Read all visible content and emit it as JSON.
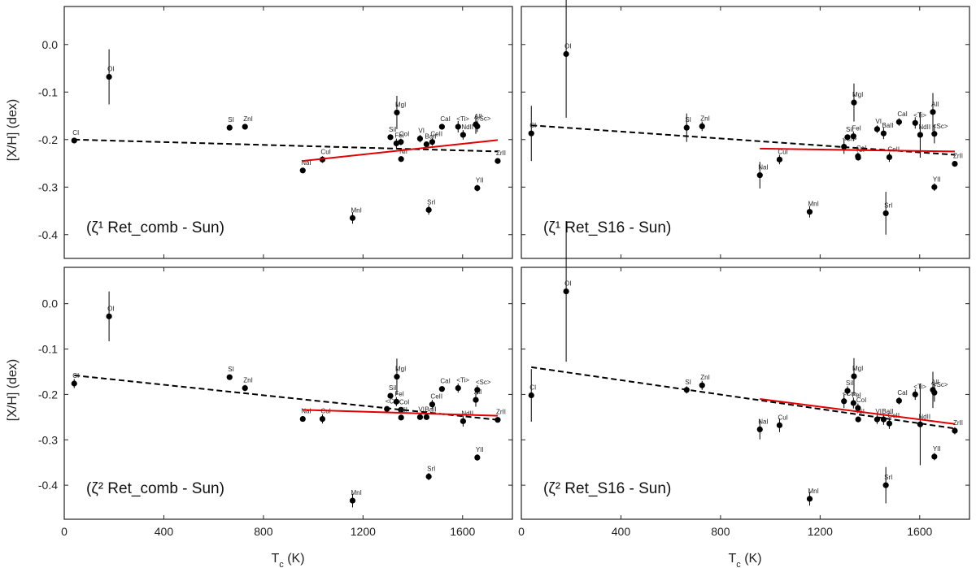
{
  "figure": {
    "ylabel_top": "[X/H] (dex)",
    "ylabel_bottom": "[X/H] (dex)",
    "xlabel_left": "T$_c$ (K)",
    "xlabel_right": "T$_c$ (K)"
  },
  "chart_data": [
    {
      "type": "scatter",
      "title": "(ζ¹ Ret_comb - Sun)",
      "xlabel": "Tc (K)",
      "ylabel": "[X/H] (dex)",
      "xlim": [
        0,
        1800
      ],
      "ylim": [
        -0.45,
        0.08
      ],
      "xticks": [
        "0",
        "400",
        "800",
        "1200",
        "1600"
      ],
      "yticks": [
        "0.0",
        "-0.1",
        "-0.2",
        "-0.3",
        "-0.4"
      ],
      "points": [
        {
          "label": "CI",
          "tc": 40,
          "value": -0.202,
          "err": 0.004
        },
        {
          "label": "OI",
          "tc": 180,
          "value": -0.068,
          "err": 0.058
        },
        {
          "label": "SI",
          "tc": 664,
          "value": -0.175,
          "err": 0.005
        },
        {
          "label": "ZnI",
          "tc": 726,
          "value": -0.173,
          "err": 0.006
        },
        {
          "label": "NaI",
          "tc": 958,
          "value": -0.265,
          "err": 0.004
        },
        {
          "label": "CuI",
          "tc": 1037,
          "value": -0.242,
          "err": 0.007
        },
        {
          "label": "MnI",
          "tc": 1158,
          "value": -0.365,
          "err": 0.012
        },
        {
          "label": "SiI",
          "tc": 1310,
          "value": -0.195,
          "err": 0.005
        },
        {
          "label": "MgI",
          "tc": 1336,
          "value": -0.143,
          "err": 0.035
        },
        {
          "label": "FeI",
          "tc": 1334,
          "value": -0.208,
          "err": 0.01
        },
        {
          "label": "CoI",
          "tc": 1352,
          "value": -0.205,
          "err": 0.007
        },
        {
          "label": "NiI",
          "tc": 1353,
          "value": -0.241,
          "err": 0.005
        },
        {
          "label": "VI",
          "tc": 1429,
          "value": -0.198,
          "err": 0.008
        },
        {
          "label": "SrI",
          "tc": 1464,
          "value": -0.348,
          "err": 0.01
        },
        {
          "label": "BaII",
          "tc": 1455,
          "value": -0.21,
          "err": 0.006
        },
        {
          "label": "CeII",
          "tc": 1478,
          "value": -0.205,
          "err": 0.008
        },
        {
          "label": "CaI",
          "tc": 1517,
          "value": -0.173,
          "err": 0.006
        },
        {
          "label": "<Ti>",
          "tc": 1582,
          "value": -0.173,
          "err": 0.012
        },
        {
          "label": "NdII",
          "tc": 1602,
          "value": -0.19,
          "err": 0.01
        },
        {
          "label": "AlI",
          "tc": 1653,
          "value": -0.168,
          "err": 0.02
        },
        {
          "label": "<Sc>",
          "tc": 1659,
          "value": -0.172,
          "err": 0.012
        },
        {
          "label": "YII",
          "tc": 1659,
          "value": -0.302,
          "err": 0.007
        },
        {
          "label": "ZrII",
          "tc": 1741,
          "value": -0.245,
          "err": 0.006
        }
      ],
      "fit_all": {
        "name": "dashed black fit (all elements)",
        "x": [
          40,
          1741
        ],
        "y": [
          -0.2,
          -0.225
        ]
      },
      "fit_refractory": {
        "name": "red fit (Tc > 900 K)",
        "x": [
          958,
          1741
        ],
        "y": [
          -0.245,
          -0.201
        ]
      }
    },
    {
      "type": "scatter",
      "title": "(ζ¹ Ret_S16 - Sun)",
      "xlabel": "Tc (K)",
      "ylabel": "[X/H] (dex)",
      "xlim": [
        0,
        1800
      ],
      "ylim": [
        -0.45,
        0.08
      ],
      "xticks": [
        "0",
        "400",
        "800",
        "1200",
        "1600"
      ],
      "yticks": [
        "0.0",
        "-0.1",
        "-0.2",
        "-0.3",
        "-0.4"
      ],
      "points": [
        {
          "label": "CI",
          "tc": 40,
          "value": -0.187,
          "err": 0.058
        },
        {
          "label": "OI",
          "tc": 180,
          "value": -0.02,
          "err": 0.134
        },
        {
          "label": "SI",
          "tc": 664,
          "value": -0.175,
          "err": 0.03
        },
        {
          "label": "ZnI",
          "tc": 726,
          "value": -0.172,
          "err": 0.01
        },
        {
          "label": "NaI",
          "tc": 958,
          "value": -0.275,
          "err": 0.028
        },
        {
          "label": "CuI",
          "tc": 1037,
          "value": -0.242,
          "err": 0.01
        },
        {
          "label": "MnI",
          "tc": 1158,
          "value": -0.352,
          "err": 0.012
        },
        {
          "label": "<Cr>",
          "tc": 1296,
          "value": -0.215,
          "err": 0.015
        },
        {
          "label": "SiI",
          "tc": 1310,
          "value": -0.195,
          "err": 0.006
        },
        {
          "label": "FeI",
          "tc": 1334,
          "value": -0.193,
          "err": 0.01
        },
        {
          "label": "MgI",
          "tc": 1336,
          "value": -0.122,
          "err": 0.04
        },
        {
          "label": "CoI",
          "tc": 1352,
          "value": -0.235,
          "err": 0.008
        },
        {
          "label": "NiI",
          "tc": 1353,
          "value": -0.238,
          "err": 0.006
        },
        {
          "label": "VI",
          "tc": 1429,
          "value": -0.178,
          "err": 0.008
        },
        {
          "label": "BaII",
          "tc": 1455,
          "value": -0.187,
          "err": 0.012
        },
        {
          "label": "SrI",
          "tc": 1464,
          "value": -0.355,
          "err": 0.045
        },
        {
          "label": "CeII",
          "tc": 1478,
          "value": -0.237,
          "err": 0.01
        },
        {
          "label": "CaI",
          "tc": 1517,
          "value": -0.163,
          "err": 0.008
        },
        {
          "label": "<Ti>",
          "tc": 1582,
          "value": -0.165,
          "err": 0.012
        },
        {
          "label": "NdII",
          "tc": 1602,
          "value": -0.19,
          "err": 0.048
        },
        {
          "label": "AlI",
          "tc": 1653,
          "value": -0.142,
          "err": 0.04
        },
        {
          "label": "<Sc>",
          "tc": 1659,
          "value": -0.188,
          "err": 0.02
        },
        {
          "label": "YII",
          "tc": 1659,
          "value": -0.3,
          "err": 0.008
        },
        {
          "label": "ZrII",
          "tc": 1741,
          "value": -0.251,
          "err": 0.005
        }
      ],
      "fit_all": {
        "name": "dashed black fit (all elements)",
        "x": [
          40,
          1741
        ],
        "y": [
          -0.17,
          -0.232
        ]
      },
      "fit_refractory": {
        "name": "red fit (Tc > 900 K)",
        "x": [
          958,
          1741
        ],
        "y": [
          -0.219,
          -0.225
        ]
      }
    },
    {
      "type": "scatter",
      "title": "(ζ² Ret_comb - Sun)",
      "xlabel": "Tc (K)",
      "ylabel": "[X/H] (dex)",
      "xlim": [
        0,
        1800
      ],
      "ylim": [
        -0.475,
        0.08
      ],
      "xticks": [
        "0",
        "400",
        "800",
        "1200",
        "1600"
      ],
      "yticks": [
        "0.0",
        "-0.1",
        "-0.2",
        "-0.3",
        "-0.4"
      ],
      "points": [
        {
          "label": "CI",
          "tc": 40,
          "value": -0.176,
          "err": 0.01
        },
        {
          "label": "OI",
          "tc": 180,
          "value": -0.028,
          "err": 0.055
        },
        {
          "label": "SI",
          "tc": 664,
          "value": -0.162,
          "err": 0.005
        },
        {
          "label": "ZnI",
          "tc": 726,
          "value": -0.186,
          "err": 0.007
        },
        {
          "label": "NaI",
          "tc": 958,
          "value": -0.254,
          "err": 0.006
        },
        {
          "label": "CuI",
          "tc": 1037,
          "value": -0.254,
          "err": 0.01
        },
        {
          "label": "MnI",
          "tc": 1158,
          "value": -0.434,
          "err": 0.015
        },
        {
          "label": "<Cr>",
          "tc": 1296,
          "value": -0.232,
          "err": 0.006
        },
        {
          "label": "SiI",
          "tc": 1310,
          "value": -0.203,
          "err": 0.006
        },
        {
          "label": "FeI",
          "tc": 1334,
          "value": -0.216,
          "err": 0.01
        },
        {
          "label": "MgI",
          "tc": 1336,
          "value": -0.161,
          "err": 0.04
        },
        {
          "label": "CoI",
          "tc": 1352,
          "value": -0.234,
          "err": 0.006
        },
        {
          "label": "NiI",
          "tc": 1353,
          "value": -0.251,
          "err": 0.005
        },
        {
          "label": "VI",
          "tc": 1429,
          "value": -0.25,
          "err": 0.006
        },
        {
          "label": "BaII",
          "tc": 1455,
          "value": -0.25,
          "err": 0.006
        },
        {
          "label": "SrI",
          "tc": 1464,
          "value": -0.381,
          "err": 0.008
        },
        {
          "label": "CeII",
          "tc": 1478,
          "value": -0.222,
          "err": 0.01
        },
        {
          "label": "CaI",
          "tc": 1517,
          "value": -0.188,
          "err": 0.006
        },
        {
          "label": "<Ti>",
          "tc": 1582,
          "value": -0.186,
          "err": 0.01
        },
        {
          "label": "NdII",
          "tc": 1602,
          "value": -0.259,
          "err": 0.012
        },
        {
          "label": "AlI",
          "tc": 1653,
          "value": -0.212,
          "err": 0.015
        },
        {
          "label": "<Sc>",
          "tc": 1659,
          "value": -0.19,
          "err": 0.01
        },
        {
          "label": "YII",
          "tc": 1659,
          "value": -0.339,
          "err": 0.007
        },
        {
          "label": "ZrII",
          "tc": 1741,
          "value": -0.256,
          "err": 0.006
        }
      ],
      "fit_all": {
        "name": "dashed black fit (all elements)",
        "x": [
          40,
          1741
        ],
        "y": [
          -0.158,
          -0.256
        ]
      },
      "fit_refractory": {
        "name": "red fit (Tc > 900 K)",
        "x": [
          958,
          1741
        ],
        "y": [
          -0.234,
          -0.247
        ]
      }
    },
    {
      "type": "scatter",
      "title": "(ζ² Ret_S16 - Sun)",
      "xlabel": "Tc (K)",
      "ylabel": "[X/H] (dex)",
      "xlim": [
        0,
        1800
      ],
      "ylim": [
        -0.475,
        0.08
      ],
      "xticks": [
        "0",
        "400",
        "800",
        "1200",
        "1600"
      ],
      "yticks": [
        "0.0",
        "-0.1",
        "-0.2",
        "-0.3",
        "-0.4"
      ],
      "points": [
        {
          "label": "CI",
          "tc": 40,
          "value": -0.202,
          "err": 0.058
        },
        {
          "label": "OI",
          "tc": 180,
          "value": 0.027,
          "err": 0.155
        },
        {
          "label": "SI",
          "tc": 664,
          "value": -0.19,
          "err": 0.008
        },
        {
          "label": "ZnI",
          "tc": 726,
          "value": -0.18,
          "err": 0.01
        },
        {
          "label": "NaI",
          "tc": 958,
          "value": -0.277,
          "err": 0.022
        },
        {
          "label": "CuI",
          "tc": 1037,
          "value": -0.268,
          "err": 0.015
        },
        {
          "label": "MnI",
          "tc": 1158,
          "value": -0.43,
          "err": 0.015
        },
        {
          "label": "<Cr>",
          "tc": 1296,
          "value": -0.215,
          "err": 0.015
        },
        {
          "label": "SiI",
          "tc": 1310,
          "value": -0.192,
          "err": 0.01
        },
        {
          "label": "FeI",
          "tc": 1334,
          "value": -0.219,
          "err": 0.012
        },
        {
          "label": "MgI",
          "tc": 1336,
          "value": -0.16,
          "err": 0.04
        },
        {
          "label": "CoI",
          "tc": 1352,
          "value": -0.23,
          "err": 0.01
        },
        {
          "label": "NiI",
          "tc": 1353,
          "value": -0.255,
          "err": 0.006
        },
        {
          "label": "VI",
          "tc": 1429,
          "value": -0.255,
          "err": 0.01
        },
        {
          "label": "BaII",
          "tc": 1455,
          "value": -0.255,
          "err": 0.012
        },
        {
          "label": "SrI",
          "tc": 1464,
          "value": -0.4,
          "err": 0.04
        },
        {
          "label": "CeII",
          "tc": 1478,
          "value": -0.264,
          "err": 0.012
        },
        {
          "label": "CaI",
          "tc": 1517,
          "value": -0.214,
          "err": 0.008
        },
        {
          "label": "<Ti>",
          "tc": 1582,
          "value": -0.2,
          "err": 0.012
        },
        {
          "label": "NdII",
          "tc": 1602,
          "value": -0.266,
          "err": 0.09
        },
        {
          "label": "AlI",
          "tc": 1653,
          "value": -0.19,
          "err": 0.04
        },
        {
          "label": "<Sc>",
          "tc": 1659,
          "value": -0.196,
          "err": 0.02
        },
        {
          "label": "YII",
          "tc": 1659,
          "value": -0.337,
          "err": 0.008
        },
        {
          "label": "ZrII",
          "tc": 1741,
          "value": -0.28,
          "err": 0.008
        }
      ],
      "fit_all": {
        "name": "dashed black fit (all elements)",
        "x": [
          40,
          1741
        ],
        "y": [
          -0.14,
          -0.275
        ]
      },
      "fit_refractory": {
        "name": "red fit (Tc > 900 K)",
        "x": [
          958,
          1741
        ],
        "y": [
          -0.21,
          -0.265
        ]
      }
    }
  ],
  "colors": {
    "points": "#000000",
    "fit_all": "#000000",
    "fit_refractory": "#e00000",
    "frame": "#222222"
  }
}
